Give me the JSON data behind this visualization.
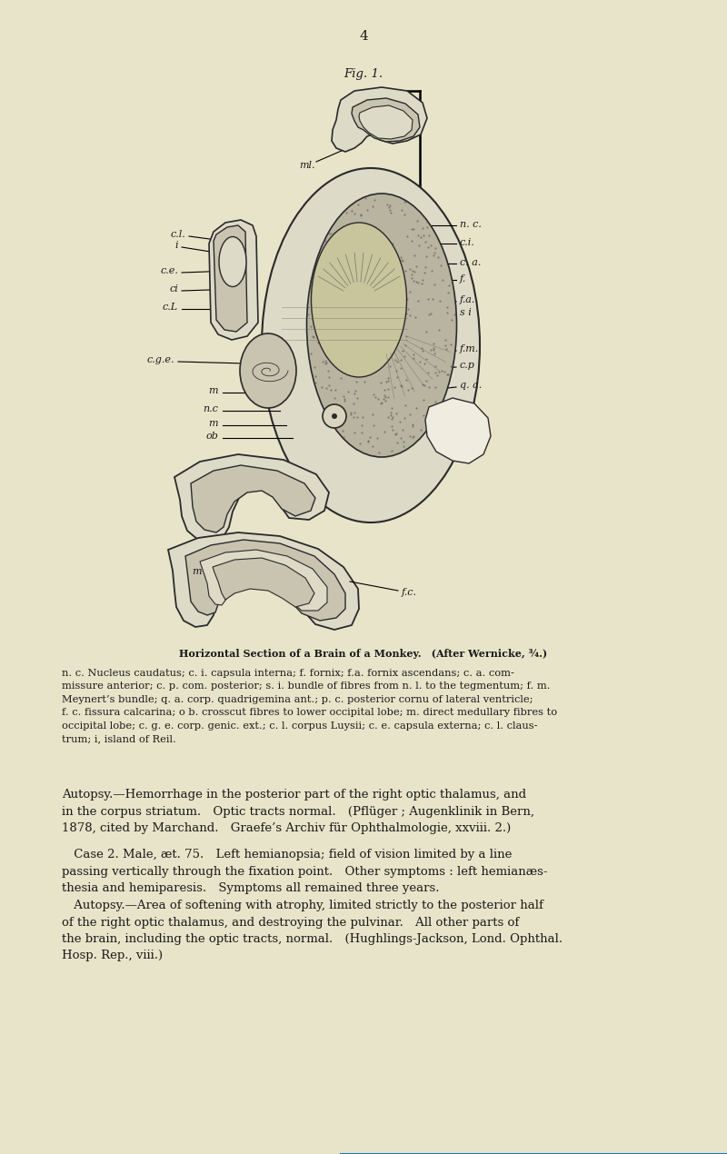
{
  "background_color": "#e8e4c9",
  "page_number": "4",
  "fig_label": "Fig. 1.",
  "caption_title": "Horizontal Section of a Brain of a Monkey. (After Wernicke, ¾.)",
  "caption_body": "n. c. Nucleus caudatus; c. i. capsula interna; f. fornix; f.a. fornix ascendans; c. a. com-\nmissure anterior; c. p. com. posterior; s. i. bundle of fibres from n. l. to the tegmentum; f. m.\nMeynert’s bundle; q. a. corp. quadrigemina ant.; p. c. posterior cornu of lateral ventricle;\nf. c. fissura calcarina; o b. crosscut fibres to lower occipital lobe; m. direct medullary fibres to\noccipital lobe; c. g. e. corp. genic. ext.; c. l. corpus Luysii; c. e. capsula externa; c. l. claus-\ntrum; i, island of Reil.",
  "autopsy_text_1": "Autopsy.—Hemorrhage in the posterior part of the right optic thalamus, and\nin the corpus striatum. Optic tracts normal. (Pflüger ; Augenklinik in Bern,\n1878, cited by Marchand. Graefe’s Archiv für Ophthalmologie, xxviii. 2.)",
  "autopsy_text_2": " Case 2. Male, æt. 75. Left hemianopsia; field of vision limited by a line\npassing vertically through the fixation point. Other symptoms : left hemianæs-\nthesia and hemiparesis. Symptoms all remained three years.",
  "autopsy_text_3": " Autopsy.—Area of softening with atrophy, limited strictly to the posterior half\nof the right optic thalamus, and destroying the pulvinar. All other parts of\nthe brain, including the optic tracts, normal. (Hughlings-Jackson, Lond. Ophthal.\nHosp. Rep., viii.)",
  "text_color": "#1a1a1a",
  "caption_fontsize": 8.2,
  "body_fontsize": 9.5,
  "page_num_fontsize": 11,
  "light_gray": "#dddac8",
  "brain_gray": "#c8c4b0",
  "dark_gray": "#888070"
}
